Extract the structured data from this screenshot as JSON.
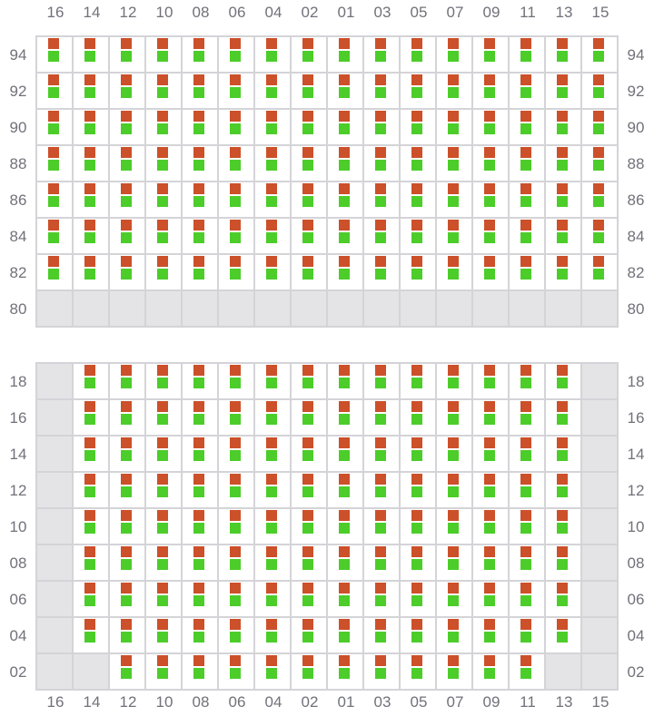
{
  "colors": {
    "top_marker": "#cc5029",
    "bottom_marker": "#4ccd2a",
    "unavailable": "#e4e4e7",
    "grid_line": "#d4d4d8"
  },
  "columns": [
    "16",
    "14",
    "12",
    "10",
    "08",
    "06",
    "04",
    "02",
    "01",
    "03",
    "05",
    "07",
    "09",
    "11",
    "13",
    "15"
  ],
  "sections": [
    {
      "rows": [
        {
          "label": "94",
          "unavailable": []
        },
        {
          "label": "92",
          "unavailable": []
        },
        {
          "label": "90",
          "unavailable": []
        },
        {
          "label": "88",
          "unavailable": []
        },
        {
          "label": "86",
          "unavailable": []
        },
        {
          "label": "84",
          "unavailable": []
        },
        {
          "label": "82",
          "unavailable": []
        },
        {
          "label": "80",
          "unavailable": [
            "16",
            "14",
            "12",
            "10",
            "08",
            "06",
            "04",
            "02",
            "01",
            "03",
            "05",
            "07",
            "09",
            "11",
            "13",
            "15"
          ]
        }
      ]
    },
    {
      "rows": [
        {
          "label": "18",
          "unavailable": [
            "16",
            "15"
          ]
        },
        {
          "label": "16",
          "unavailable": [
            "16",
            "15"
          ]
        },
        {
          "label": "14",
          "unavailable": [
            "16",
            "15"
          ]
        },
        {
          "label": "12",
          "unavailable": [
            "16",
            "15"
          ]
        },
        {
          "label": "10",
          "unavailable": [
            "16",
            "15"
          ]
        },
        {
          "label": "08",
          "unavailable": [
            "16",
            "15"
          ]
        },
        {
          "label": "06",
          "unavailable": [
            "16",
            "15"
          ]
        },
        {
          "label": "04",
          "unavailable": [
            "16",
            "15"
          ]
        },
        {
          "label": "02",
          "unavailable": [
            "16",
            "14",
            "13",
            "15"
          ]
        }
      ]
    }
  ]
}
